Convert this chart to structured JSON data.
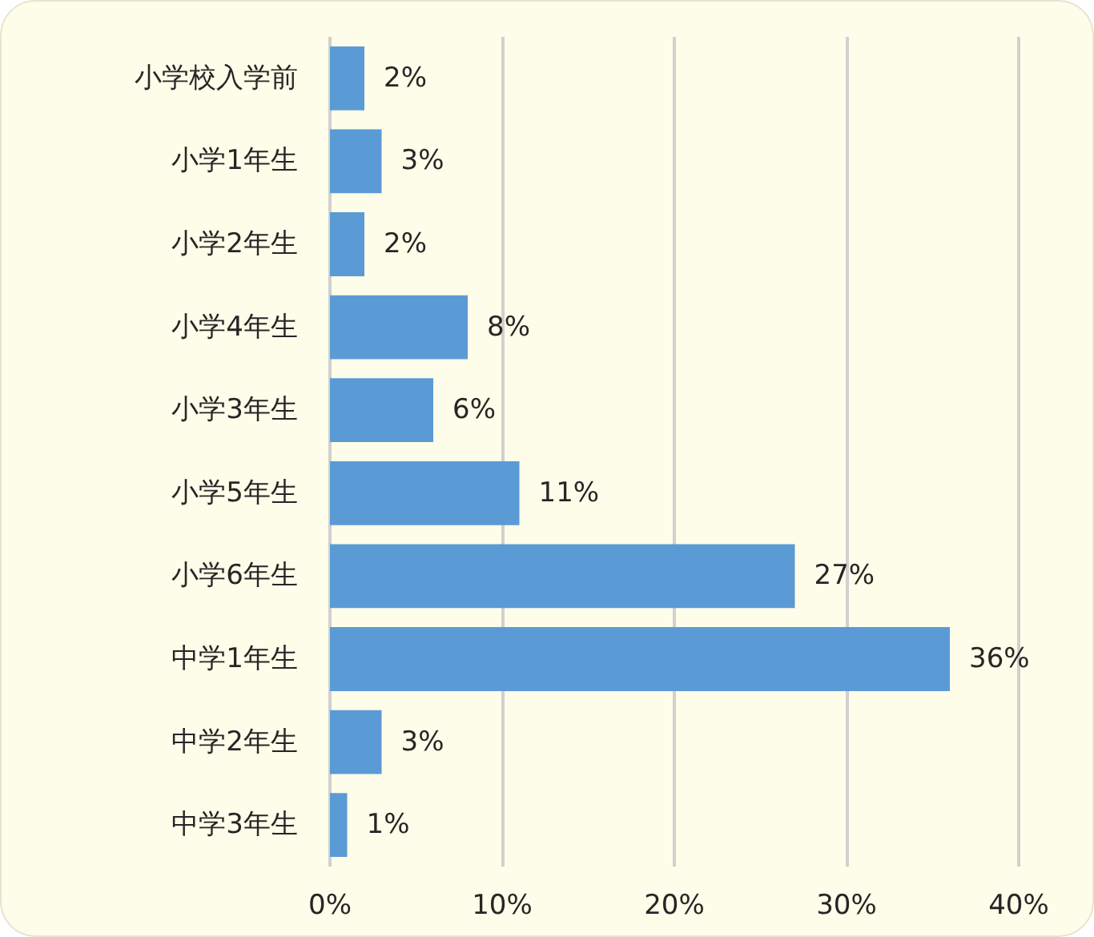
{
  "chart_data": {
    "type": "bar",
    "orientation": "horizontal",
    "categories": [
      "小学校入学前",
      "小学1年生",
      "小学2年生",
      "小学4年生",
      "小学3年生",
      "小学5年生",
      "小学6年生",
      "中学1年生",
      "中学2年生",
      "中学3年生"
    ],
    "values": [
      2,
      3,
      2,
      8,
      6,
      11,
      27,
      36,
      3,
      1
    ],
    "value_labels": [
      "2%",
      "3%",
      "2%",
      "8%",
      "6%",
      "11%",
      "27%",
      "36%",
      "3%",
      "1%"
    ],
    "color": "#5b9bd5",
    "xlim": [
      0,
      40
    ],
    "xticks": [
      {
        "value": 0,
        "label": "0%"
      },
      {
        "value": 10,
        "label": "10%"
      },
      {
        "value": 20,
        "label": "20%"
      },
      {
        "value": 30,
        "label": "30%"
      },
      {
        "value": 40,
        "label": "40%"
      }
    ],
    "grid": "x"
  }
}
